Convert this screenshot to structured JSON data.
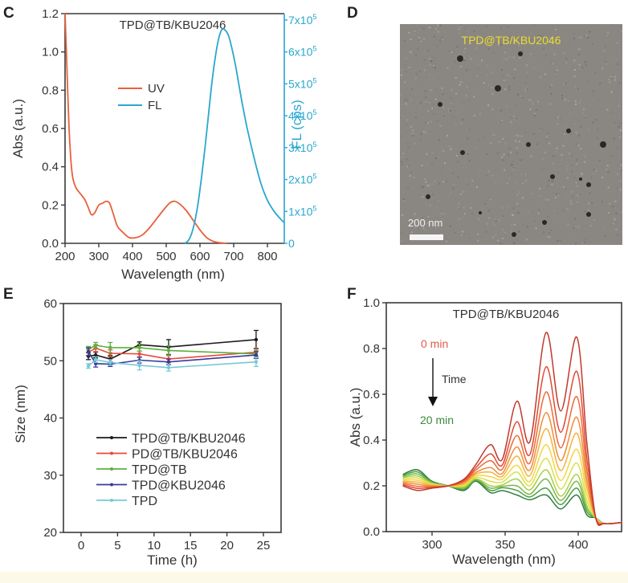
{
  "panels": {
    "C": {
      "letter": "C"
    },
    "D": {
      "letter": "D",
      "image_label": "TPD@TB/KBU2046",
      "scale_bar_label": "200 nm",
      "label_color": "#e8dc2a"
    },
    "E": {
      "letter": "E"
    },
    "F": {
      "letter": "F"
    }
  },
  "chart_data": [
    {
      "id": "C",
      "type": "line",
      "title": "TPD@TB/KBU2046",
      "xlabel": "Wavelength (nm)",
      "ylabel": "Abs (a.u.)",
      "y2label": "FL (cps)",
      "xlim": [
        200,
        850
      ],
      "ylim": [
        0,
        1.2
      ],
      "y2lim": [
        0,
        720000
      ],
      "xticks": [
        200,
        300,
        400,
        500,
        600,
        700,
        800
      ],
      "yticks": [
        "0.0",
        "0.2",
        "0.4",
        "0.6",
        "0.8",
        "1.0",
        "1.2"
      ],
      "y2ticks": [
        {
          "value": 0,
          "label": "0"
        },
        {
          "value": 100000,
          "label": "1x10",
          "exp": "5"
        },
        {
          "value": 200000,
          "label": "2x10",
          "exp": "5"
        },
        {
          "value": 300000,
          "label": "3x10",
          "exp": "5"
        },
        {
          "value": 400000,
          "label": "4x10",
          "exp": "5"
        },
        {
          "value": 500000,
          "label": "5x10",
          "exp": "5"
        },
        {
          "value": 600000,
          "label": "6x10",
          "exp": "5"
        },
        {
          "value": 700000,
          "label": "7x10",
          "exp": "5"
        }
      ],
      "legend": {
        "placement": "upper-left-center"
      },
      "series": [
        {
          "name": "UV",
          "axis": "left",
          "color": "#e8603c",
          "x": [
            200,
            205,
            212,
            220,
            230,
            245,
            258,
            268,
            278,
            288,
            300,
            312,
            322,
            332,
            342,
            355,
            370,
            390,
            410,
            430,
            450,
            470,
            490,
            510,
            525,
            540,
            560,
            580,
            600,
            620,
            640,
            660,
            680
          ],
          "y": [
            1.2,
            0.95,
            0.6,
            0.38,
            0.3,
            0.26,
            0.23,
            0.19,
            0.15,
            0.16,
            0.2,
            0.21,
            0.22,
            0.21,
            0.16,
            0.09,
            0.06,
            0.03,
            0.03,
            0.045,
            0.08,
            0.125,
            0.17,
            0.21,
            0.22,
            0.205,
            0.17,
            0.12,
            0.07,
            0.03,
            0.01,
            0.003,
            0.0
          ]
        },
        {
          "name": "FL",
          "axis": "right",
          "color": "#2aa7cf",
          "x": [
            555,
            565,
            575,
            585,
            595,
            605,
            615,
            625,
            635,
            645,
            655,
            665,
            675,
            685,
            695,
            705,
            715,
            725,
            740,
            760,
            780,
            800,
            820,
            840,
            850
          ],
          "y": [
            0,
            8000,
            30000,
            70000,
            130000,
            210000,
            300000,
            400000,
            500000,
            580000,
            640000,
            670000,
            668000,
            650000,
            610000,
            560000,
            500000,
            440000,
            360000,
            270000,
            190000,
            135000,
            100000,
            75000,
            65000
          ]
        }
      ]
    },
    {
      "id": "E",
      "type": "line",
      "title": "",
      "xlabel": "Time (h)",
      "ylabel": "Size (nm)",
      "xlim": [
        -3.5,
        26
      ],
      "ylim": [
        20,
        60
      ],
      "xticks": [
        0,
        5,
        10,
        15,
        20,
        25
      ],
      "yticks": [
        20,
        30,
        40,
        50,
        60
      ],
      "legend": {
        "placement": "lower-center"
      },
      "x": [
        1,
        2,
        4,
        8,
        12,
        24
      ],
      "series": [
        {
          "name": "TPD@TB/KBU2046",
          "color": "#1a1a1a",
          "values": [
            50.8,
            51.0,
            50.3,
            52.8,
            52.4,
            53.7
          ],
          "errors": [
            0.6,
            0.5,
            0.6,
            0.5,
            1.3,
            1.6
          ]
        },
        {
          "name": "PD@TB/KBU2046",
          "color": "#e84a3a",
          "values": [
            51.5,
            52.2,
            51.3,
            51.2,
            50.3,
            51.5
          ],
          "errors": [
            0.6,
            0.6,
            0.6,
            0.5,
            0.6,
            0.7
          ]
        },
        {
          "name": "TPD@TB",
          "color": "#5cb040",
          "values": [
            52.0,
            52.7,
            52.3,
            52.3,
            51.8,
            51.2
          ],
          "errors": [
            0.5,
            0.5,
            0.9,
            0.6,
            0.8,
            0.6
          ]
        },
        {
          "name": "TPD@KBU2046",
          "color": "#3a3a9a",
          "values": [
            51.6,
            49.5,
            49.4,
            50.1,
            49.8,
            51.0
          ],
          "errors": [
            0.7,
            0.6,
            0.4,
            0.5,
            0.5,
            0.6
          ]
        },
        {
          "name": "TPD",
          "color": "#78c8d8",
          "values": [
            49.1,
            50.2,
            49.7,
            49.2,
            48.8,
            49.8
          ],
          "errors": [
            0.4,
            0.5,
            0.5,
            0.8,
            0.6,
            0.8
          ]
        }
      ]
    },
    {
      "id": "F",
      "type": "line",
      "title": "TPD@TB/KBU2046",
      "xlabel": "Wavelength (nm)",
      "ylabel": "Abs (a.u.)",
      "xlim": [
        280,
        430
      ],
      "ylim": [
        0,
        1.0
      ],
      "xticks": [
        300,
        350,
        400
      ],
      "yticks": [
        "0.0",
        "0.2",
        "0.4",
        "0.6",
        "0.8",
        "1.0"
      ],
      "annotations": [
        {
          "text": "0 min",
          "color": "#e05a4a"
        },
        {
          "text": "Time",
          "color": "#333333"
        },
        {
          "text": "20 min",
          "color": "#3a8a3a"
        }
      ],
      "time_range_min": [
        0,
        20
      ],
      "n_curves": 11,
      "peak_wavelengths": [
        340,
        358,
        378,
        399
      ],
      "peak_378_values": [
        0.87,
        0.72,
        0.61,
        0.52,
        0.45,
        0.38,
        0.32,
        0.27,
        0.23,
        0.19,
        0.16
      ],
      "peak_399_values": [
        0.85,
        0.7,
        0.59,
        0.5,
        0.43,
        0.36,
        0.3,
        0.25,
        0.22,
        0.19,
        0.16
      ],
      "peak_358_values": [
        0.57,
        0.48,
        0.42,
        0.37,
        0.33,
        0.29,
        0.26,
        0.23,
        0.2,
        0.18,
        0.16
      ],
      "peak_340_values": [
        0.38,
        0.34,
        0.31,
        0.28,
        0.26,
        0.24,
        0.22,
        0.2,
        0.19,
        0.18,
        0.17
      ],
      "isosbestic_nm": 311,
      "value_at_280": [
        0.2,
        0.205,
        0.21,
        0.215,
        0.22,
        0.225,
        0.23,
        0.235,
        0.24,
        0.245,
        0.25
      ],
      "colors": [
        "#c0392b",
        "#e04a35",
        "#ec6a3a",
        "#f08c3a",
        "#f3b23c",
        "#f2d645",
        "#d9e04a",
        "#a9cf48",
        "#78b846",
        "#4c9e44",
        "#2e8040"
      ]
    }
  ]
}
